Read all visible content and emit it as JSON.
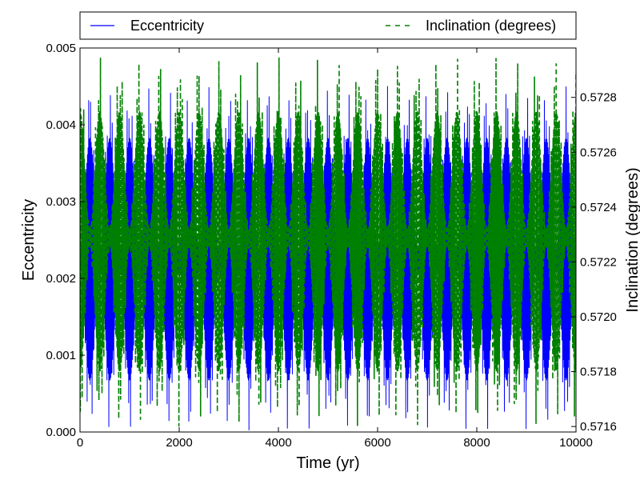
{
  "chart_data": {
    "type": "line",
    "title": "",
    "xlabel": "Time (yr)",
    "ylabel_left": "Eccentricity",
    "ylabel_right": "Inclination (degrees)",
    "xlim": [
      0,
      10000
    ],
    "ylim_left": [
      0.0,
      0.005
    ],
    "ylim_right": [
      0.57158,
      0.57298
    ],
    "grid": false,
    "legend_placement": "top (above plot)",
    "x_ticks": [
      0,
      2000,
      4000,
      6000,
      8000,
      10000
    ],
    "x_tick_labels": [
      "0",
      "2000",
      "4000",
      "6000",
      "8000",
      "10000"
    ],
    "y_left_ticks": [
      0.0,
      0.001,
      0.002,
      0.003,
      0.004,
      0.005
    ],
    "y_left_tick_labels": [
      "0.000",
      "0.001",
      "0.002",
      "0.003",
      "0.004",
      "0.005"
    ],
    "y_right_ticks": [
      0.5716,
      0.5718,
      0.572,
      0.5722,
      0.5724,
      0.5726,
      0.5728
    ],
    "y_right_tick_labels": [
      "0.5716",
      "0.5718",
      "0.5720",
      "0.5722",
      "0.5724",
      "0.5726",
      "0.5728"
    ],
    "series": [
      {
        "name": "Eccentricity",
        "axis": "left",
        "style": "solid",
        "color": "#0000ff",
        "envelope_period_yr": 400,
        "envelope_peak_times_yr": [
          0,
          400,
          800,
          1200,
          1600,
          2000,
          2400,
          2800,
          3200,
          3600,
          4000,
          4400,
          4800,
          5200,
          5600,
          6000,
          6400,
          6800,
          7200,
          7600,
          8000,
          8400,
          8800,
          9200,
          9600,
          10000
        ],
        "upper_envelope_range": [
          0.0024,
          0.0045
        ],
        "lower_envelope_range": [
          0.0,
          0.0021
        ],
        "fast_oscillation_period_yr": 25
      },
      {
        "name": "Inclination (degrees)",
        "axis": "right",
        "style": "dashed",
        "color": "#008000",
        "envelope_period_yr": 400,
        "upper_envelope_range": [
          0.57233,
          0.57295
        ],
        "lower_envelope_range": [
          0.5716,
          0.57225
        ],
        "fast_oscillation_period_yr": 25
      }
    ]
  }
}
